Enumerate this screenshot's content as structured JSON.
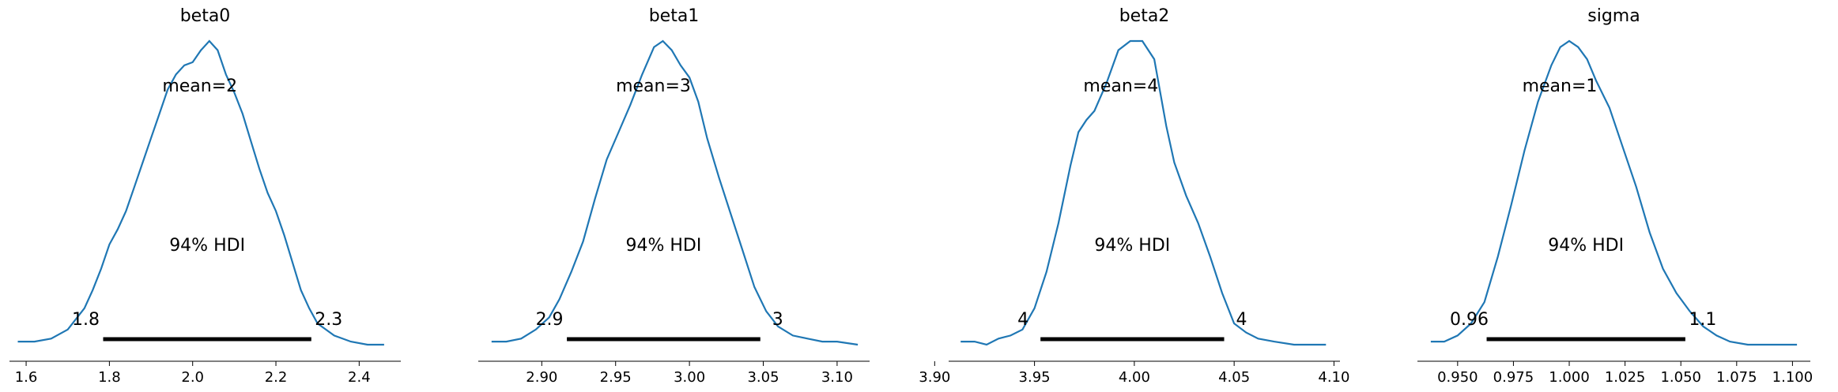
{
  "chart_data": [
    {
      "type": "line",
      "title": "beta0",
      "mean_label": "mean=2",
      "hdi_label": "94% HDI",
      "hdi": [
        1.785,
        2.285
      ],
      "hdi_low_label": "1.8",
      "hdi_high_label": "2.3",
      "xlim": [
        1.56,
        2.5
      ],
      "xticks": [
        1.6,
        1.8,
        2.0,
        2.2,
        2.4
      ],
      "xtick_labels": [
        "1.6",
        "1.8",
        "2.0",
        "2.2",
        "2.4"
      ],
      "x": [
        1.58,
        1.62,
        1.66,
        1.7,
        1.74,
        1.76,
        1.78,
        1.8,
        1.82,
        1.84,
        1.86,
        1.88,
        1.9,
        1.92,
        1.94,
        1.96,
        1.98,
        2.0,
        2.02,
        2.04,
        2.06,
        2.08,
        2.1,
        2.12,
        2.14,
        2.16,
        2.18,
        2.2,
        2.22,
        2.24,
        2.26,
        2.28,
        2.3,
        2.34,
        2.38,
        2.42,
        2.46
      ],
      "y": [
        0.01,
        0.01,
        0.02,
        0.05,
        0.12,
        0.18,
        0.25,
        0.33,
        0.38,
        0.44,
        0.52,
        0.6,
        0.68,
        0.76,
        0.84,
        0.89,
        0.92,
        0.93,
        0.97,
        1.0,
        0.97,
        0.89,
        0.83,
        0.76,
        0.67,
        0.58,
        0.5,
        0.44,
        0.36,
        0.27,
        0.18,
        0.12,
        0.07,
        0.03,
        0.01,
        0.0,
        0.0
      ]
    },
    {
      "type": "line",
      "title": "beta1",
      "mean_label": "mean=3",
      "hdi_label": "94% HDI",
      "hdi": [
        2.917,
        3.048
      ],
      "hdi_low_label": "2.9",
      "hdi_high_label": "3",
      "xlim": [
        2.857,
        3.122
      ],
      "xticks": [
        2.9,
        2.95,
        3.0,
        3.05,
        3.1
      ],
      "xtick_labels": [
        "2.90",
        "2.95",
        "3.00",
        "3.05",
        "3.10"
      ],
      "x": [
        2.866,
        2.876,
        2.886,
        2.896,
        2.905,
        2.912,
        2.92,
        2.928,
        2.936,
        2.944,
        2.952,
        2.96,
        2.968,
        2.976,
        2.982,
        2.988,
        2.994,
        3.0,
        3.006,
        3.012,
        3.02,
        3.028,
        3.036,
        3.044,
        3.052,
        3.06,
        3.07,
        3.08,
        3.09,
        3.1,
        3.114
      ],
      "y": [
        0.01,
        0.01,
        0.02,
        0.05,
        0.09,
        0.15,
        0.24,
        0.34,
        0.48,
        0.61,
        0.7,
        0.79,
        0.89,
        0.98,
        1.0,
        0.97,
        0.92,
        0.88,
        0.8,
        0.68,
        0.55,
        0.43,
        0.31,
        0.19,
        0.11,
        0.06,
        0.03,
        0.02,
        0.01,
        0.01,
        0.0
      ]
    },
    {
      "type": "line",
      "title": "beta2",
      "mean_label": "mean=4",
      "hdi_label": "94% HDI",
      "hdi": [
        3.953,
        4.045
      ],
      "hdi_low_label": "4",
      "hdi_high_label": "4",
      "xlim": [
        3.907,
        4.103
      ],
      "xticks": [
        3.9,
        3.95,
        4.0,
        4.05,
        4.1
      ],
      "xtick_labels": [
        "3.90",
        "3.95",
        "4.00",
        "4.05",
        "4.10"
      ],
      "x": [
        3.913,
        3.92,
        3.926,
        3.932,
        3.938,
        3.944,
        3.95,
        3.956,
        3.962,
        3.968,
        3.972,
        3.976,
        3.98,
        3.986,
        3.992,
        3.998,
        4.004,
        4.01,
        4.016,
        4.02,
        4.026,
        4.032,
        4.038,
        4.044,
        4.05,
        4.056,
        4.062,
        4.07,
        4.08,
        4.09,
        4.096
      ],
      "y": [
        0.01,
        0.01,
        0.0,
        0.02,
        0.03,
        0.05,
        0.12,
        0.24,
        0.4,
        0.59,
        0.7,
        0.74,
        0.77,
        0.86,
        0.97,
        1.0,
        1.0,
        0.94,
        0.72,
        0.6,
        0.49,
        0.4,
        0.29,
        0.17,
        0.07,
        0.04,
        0.02,
        0.01,
        0.0,
        0.0,
        0.0
      ]
    },
    {
      "type": "line",
      "title": "sigma",
      "mean_label": "mean=1",
      "hdi_label": "94% HDI",
      "hdi": [
        0.963,
        1.052
      ],
      "hdi_low_label": "0.96",
      "hdi_high_label": "1.1",
      "xlim": [
        0.932,
        1.108
      ],
      "xticks": [
        0.95,
        0.975,
        1.0,
        1.025,
        1.05,
        1.075,
        1.1
      ],
      "xtick_labels": [
        "0.950",
        "0.975",
        "1.000",
        "1.025",
        "1.050",
        "1.075",
        "1.100"
      ],
      "x": [
        0.938,
        0.944,
        0.95,
        0.956,
        0.962,
        0.968,
        0.974,
        0.98,
        0.986,
        0.992,
        0.996,
        1.0,
        1.004,
        1.008,
        1.012,
        1.018,
        1.024,
        1.03,
        1.036,
        1.042,
        1.048,
        1.054,
        1.06,
        1.066,
        1.072,
        1.08,
        1.09,
        1.102
      ],
      "y": [
        0.01,
        0.01,
        0.03,
        0.07,
        0.14,
        0.29,
        0.46,
        0.64,
        0.8,
        0.92,
        0.98,
        1.0,
        0.98,
        0.94,
        0.87,
        0.78,
        0.65,
        0.52,
        0.37,
        0.25,
        0.17,
        0.11,
        0.06,
        0.03,
        0.01,
        0.0,
        0.0,
        0.0
      ]
    }
  ]
}
